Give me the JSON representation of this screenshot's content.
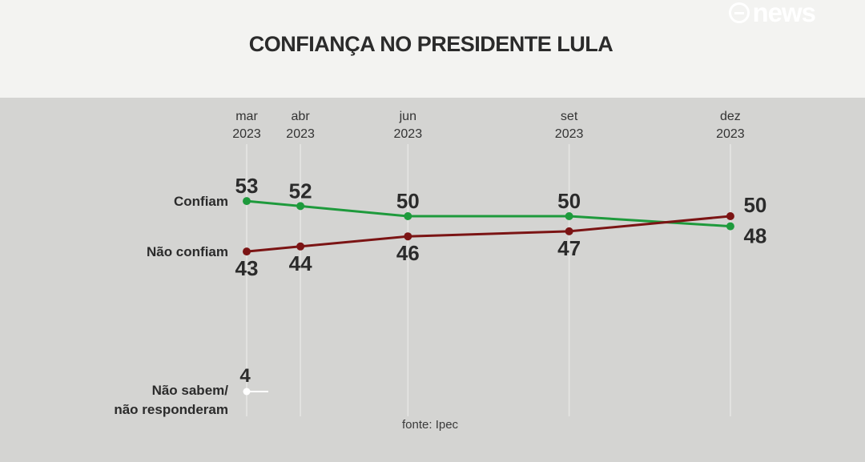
{
  "header": {
    "title": "CONFIANÇA NO PRESIDENTE LULA",
    "logo": "news"
  },
  "source": "fonte: Ipec",
  "colors": {
    "confiam": "#1e9a3c",
    "nao_confiam": "#7b1414",
    "nao_sabem": "#ffffff"
  },
  "chart_data": {
    "type": "line",
    "title": "CONFIANÇA NO PRESIDENTE LULA",
    "x": [
      "mar 2023",
      "abr 2023",
      "jun 2023",
      "set 2023",
      "dez 2023"
    ],
    "x_month": [
      "mar",
      "abr",
      "jun",
      "set",
      "dez"
    ],
    "x_year": [
      "2023",
      "2023",
      "2023",
      "2023",
      "2023"
    ],
    "grid": "vertical",
    "series": [
      {
        "name": "Confiam",
        "values": [
          53,
          52,
          50,
          50,
          48
        ]
      },
      {
        "name": "Não confiam",
        "values": [
          43,
          44,
          46,
          47,
          50
        ]
      },
      {
        "name": "Não sabem/ não responderam",
        "name_lines": [
          "Não sabem/",
          "não responderam"
        ],
        "values": [
          4,
          null,
          null,
          null,
          null
        ]
      }
    ]
  }
}
